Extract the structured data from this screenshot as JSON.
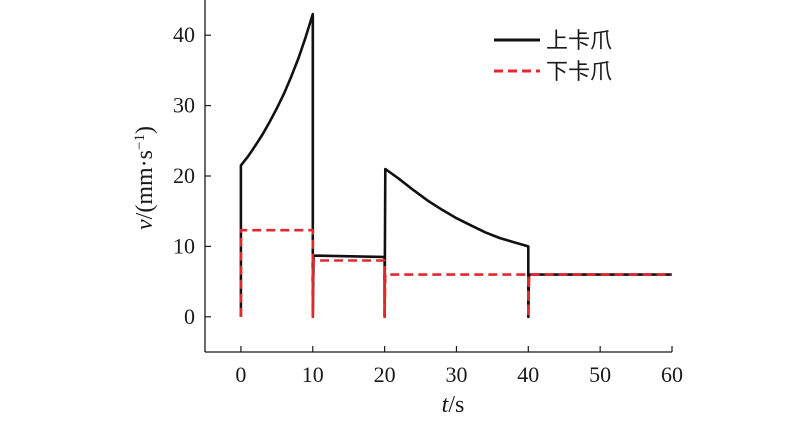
{
  "chart_data": {
    "type": "line",
    "xlabel_var": "t",
    "xlabel_unit": "/s",
    "ylabel_var": "v",
    "ylabel_unit_pre": "/(mm·s",
    "ylabel_sup": "−1",
    "ylabel_close": ")",
    "xlim": [
      -5,
      60
    ],
    "ylim": [
      -5,
      45
    ],
    "xticks": [
      0,
      10,
      20,
      30,
      40,
      50,
      60
    ],
    "yticks": [
      0,
      10,
      20,
      30,
      40
    ],
    "legend_position": "top-right",
    "grid": false,
    "series": [
      {
        "name": "上卡爪",
        "color": "#111111",
        "style": "solid",
        "points": [
          [
            0,
            0
          ],
          [
            0,
            21.5
          ],
          [
            1,
            22.8
          ],
          [
            2,
            24.3
          ],
          [
            3,
            25.9
          ],
          [
            4,
            27.7
          ],
          [
            5,
            29.6
          ],
          [
            6,
            31.7
          ],
          [
            7,
            34.1
          ],
          [
            8,
            36.7
          ],
          [
            9,
            39.7
          ],
          [
            10,
            43
          ],
          [
            10,
            0
          ],
          [
            10.1,
            8.7
          ],
          [
            20,
            8.5
          ],
          [
            20,
            0
          ],
          [
            20.1,
            21
          ],
          [
            22,
            19.6
          ],
          [
            24,
            18.0
          ],
          [
            26,
            16.5
          ],
          [
            28,
            15.2
          ],
          [
            30,
            14.0
          ],
          [
            32,
            13.0
          ],
          [
            34,
            12.0
          ],
          [
            36,
            11.2
          ],
          [
            38,
            10.6
          ],
          [
            40,
            10
          ],
          [
            40,
            0
          ],
          [
            40.1,
            6
          ],
          [
            60,
            6
          ]
        ]
      },
      {
        "name": "下卡爪",
        "color": "#e0282e",
        "style": "dashed",
        "points": [
          [
            0,
            0
          ],
          [
            0,
            12.3
          ],
          [
            10,
            12.3
          ],
          [
            10,
            0
          ],
          [
            10.1,
            8
          ],
          [
            20,
            8
          ],
          [
            20,
            0
          ],
          [
            20.1,
            6
          ],
          [
            40,
            6
          ],
          [
            40,
            0
          ],
          [
            40.1,
            6
          ],
          [
            60,
            6
          ]
        ]
      }
    ]
  }
}
